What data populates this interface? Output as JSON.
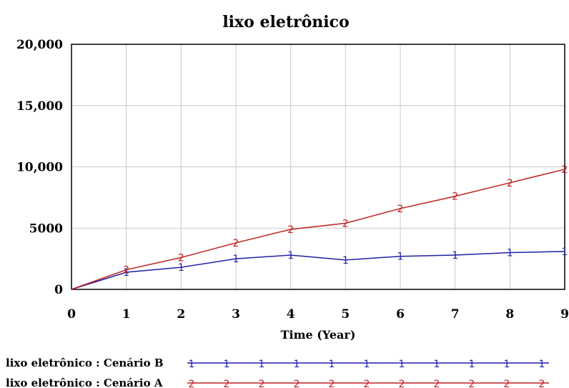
{
  "chart_data": {
    "type": "line",
    "title": "lixo eletrônico",
    "xlabel": "Time (Year)",
    "ylabel": "",
    "x": [
      0,
      1,
      2,
      3,
      4,
      5,
      6,
      7,
      8,
      9
    ],
    "xlim": [
      0,
      9
    ],
    "ylim": [
      0,
      20000
    ],
    "x_ticks": [
      "0",
      "1",
      "2",
      "3",
      "4",
      "5",
      "6",
      "7",
      "8",
      "9"
    ],
    "y_ticks": [
      {
        "value": 0,
        "label": "0"
      },
      {
        "value": 5000,
        "label": "5000"
      },
      {
        "value": 10000,
        "label": "10,000"
      },
      {
        "value": 15000,
        "label": "15,000"
      },
      {
        "value": 20000,
        "label": "20,000"
      }
    ],
    "grid": true,
    "legend_position": "bottom",
    "series": [
      {
        "name": "lixo eletrônico : Cenário B",
        "marker": "1",
        "color": "#1f1fa8",
        "values": [
          0,
          1400,
          1800,
          2500,
          2800,
          2400,
          2700,
          2800,
          3000,
          3100
        ]
      },
      {
        "name": "lixo eletrônico : Cenário A",
        "marker": "2",
        "color": "#c02020",
        "values": [
          0,
          1600,
          2600,
          3800,
          4900,
          5400,
          6600,
          7600,
          8700,
          9800
        ]
      }
    ]
  }
}
